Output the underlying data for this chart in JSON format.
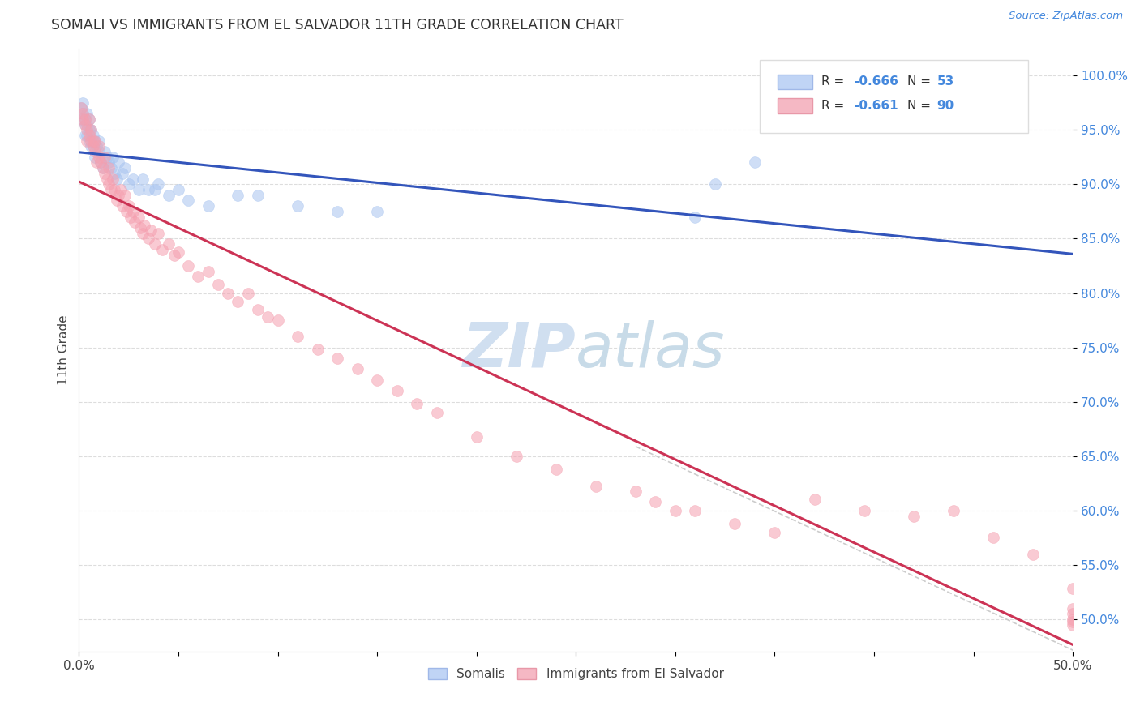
{
  "title": "SOMALI VS IMMIGRANTS FROM EL SALVADOR 11TH GRADE CORRELATION CHART",
  "source": "Source: ZipAtlas.com",
  "ylabel": "11th Grade",
  "xlim": [
    0.0,
    0.5
  ],
  "ylim": [
    0.47,
    1.025
  ],
  "yticks": [
    0.5,
    0.55,
    0.6,
    0.65,
    0.7,
    0.75,
    0.8,
    0.85,
    0.9,
    0.95,
    1.0
  ],
  "ytick_labels": [
    "50.0%",
    "55.0%",
    "60.0%",
    "65.0%",
    "70.0%",
    "75.0%",
    "80.0%",
    "85.0%",
    "90.0%",
    "95.0%",
    "100.0%"
  ],
  "xticks": [
    0.0,
    0.05,
    0.1,
    0.15,
    0.2,
    0.25,
    0.3,
    0.35,
    0.4,
    0.45,
    0.5
  ],
  "xtick_labels": [
    "0.0%",
    "",
    "",
    "",
    "",
    "",
    "",
    "",
    "",
    "",
    "50.0%"
  ],
  "somali_R": -0.666,
  "somali_N": 53,
  "salvador_R": -0.661,
  "salvador_N": 90,
  "blue_color": "#a8c4f0",
  "pink_color": "#f5a0b0",
  "blue_line_color": "#3355bb",
  "pink_line_color": "#cc3355",
  "dashed_line_color": "#cccccc",
  "watermark_color": "#d0dff0",
  "somali_x": [
    0.001,
    0.001,
    0.002,
    0.002,
    0.003,
    0.003,
    0.003,
    0.004,
    0.004,
    0.004,
    0.005,
    0.005,
    0.005,
    0.006,
    0.006,
    0.007,
    0.007,
    0.008,
    0.008,
    0.009,
    0.01,
    0.01,
    0.011,
    0.012,
    0.013,
    0.014,
    0.015,
    0.016,
    0.017,
    0.018,
    0.019,
    0.02,
    0.022,
    0.023,
    0.025,
    0.027,
    0.03,
    0.032,
    0.035,
    0.038,
    0.04,
    0.045,
    0.05,
    0.055,
    0.065,
    0.08,
    0.09,
    0.11,
    0.13,
    0.15,
    0.31,
    0.32,
    0.34
  ],
  "somali_y": [
    0.97,
    0.96,
    0.975,
    0.965,
    0.955,
    0.96,
    0.945,
    0.965,
    0.955,
    0.945,
    0.96,
    0.95,
    0.94,
    0.95,
    0.935,
    0.945,
    0.935,
    0.94,
    0.925,
    0.935,
    0.93,
    0.94,
    0.92,
    0.915,
    0.93,
    0.925,
    0.92,
    0.915,
    0.925,
    0.91,
    0.905,
    0.92,
    0.91,
    0.915,
    0.9,
    0.905,
    0.895,
    0.905,
    0.895,
    0.895,
    0.9,
    0.89,
    0.895,
    0.885,
    0.88,
    0.89,
    0.89,
    0.88,
    0.875,
    0.875,
    0.87,
    0.9,
    0.92
  ],
  "salvador_x": [
    0.001,
    0.002,
    0.002,
    0.003,
    0.003,
    0.004,
    0.004,
    0.005,
    0.005,
    0.006,
    0.006,
    0.007,
    0.007,
    0.008,
    0.008,
    0.009,
    0.01,
    0.01,
    0.011,
    0.012,
    0.013,
    0.013,
    0.014,
    0.015,
    0.015,
    0.016,
    0.017,
    0.018,
    0.019,
    0.02,
    0.021,
    0.022,
    0.023,
    0.024,
    0.025,
    0.026,
    0.027,
    0.028,
    0.03,
    0.031,
    0.032,
    0.033,
    0.035,
    0.036,
    0.038,
    0.04,
    0.042,
    0.045,
    0.048,
    0.05,
    0.055,
    0.06,
    0.065,
    0.07,
    0.075,
    0.08,
    0.085,
    0.09,
    0.095,
    0.1,
    0.11,
    0.12,
    0.13,
    0.14,
    0.15,
    0.16,
    0.17,
    0.18,
    0.2,
    0.22,
    0.24,
    0.26,
    0.28,
    0.29,
    0.3,
    0.31,
    0.33,
    0.35,
    0.37,
    0.395,
    0.42,
    0.44,
    0.46,
    0.48,
    0.5,
    0.5,
    0.5,
    0.5,
    0.5,
    0.5
  ],
  "salvador_y": [
    0.97,
    0.96,
    0.965,
    0.955,
    0.96,
    0.95,
    0.94,
    0.96,
    0.945,
    0.94,
    0.95,
    0.935,
    0.94,
    0.93,
    0.94,
    0.92,
    0.935,
    0.925,
    0.92,
    0.915,
    0.925,
    0.91,
    0.905,
    0.915,
    0.9,
    0.895,
    0.905,
    0.895,
    0.885,
    0.89,
    0.895,
    0.88,
    0.89,
    0.875,
    0.88,
    0.87,
    0.875,
    0.865,
    0.87,
    0.86,
    0.855,
    0.862,
    0.85,
    0.858,
    0.845,
    0.855,
    0.84,
    0.845,
    0.835,
    0.838,
    0.825,
    0.815,
    0.82,
    0.808,
    0.8,
    0.792,
    0.8,
    0.785,
    0.778,
    0.775,
    0.76,
    0.748,
    0.74,
    0.73,
    0.72,
    0.71,
    0.698,
    0.69,
    0.668,
    0.65,
    0.638,
    0.622,
    0.618,
    0.608,
    0.6,
    0.6,
    0.588,
    0.58,
    0.61,
    0.6,
    0.595,
    0.6,
    0.575,
    0.56,
    0.528,
    0.51,
    0.505,
    0.498,
    0.5,
    0.495
  ]
}
